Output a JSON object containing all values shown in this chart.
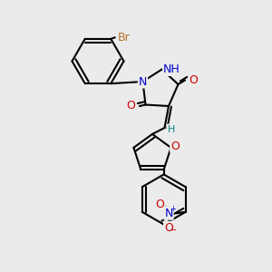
{
  "bg_color": "#ebebeb",
  "bond_lw": 1.5,
  "atoms": {
    "Br": {
      "color": "#b87333"
    },
    "O": {
      "color": "#cc0000"
    },
    "N": {
      "color": "#0000cc"
    },
    "H": {
      "color": "#008080"
    }
  },
  "layout": {
    "xlim": [
      0,
      10
    ],
    "ylim": [
      0,
      10
    ]
  }
}
